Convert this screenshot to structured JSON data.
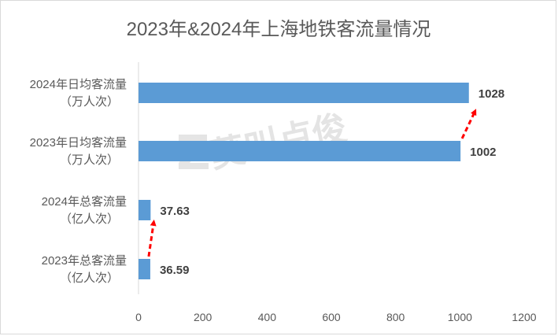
{
  "chart_data": {
    "type": "bar",
    "orientation": "horizontal",
    "title": "2023年&2024年上海地铁客流量情况",
    "categories": [
      [
        "2024年日均客流量",
        "（万人次）"
      ],
      [
        "2023年日均客流量",
        "（万人次）"
      ],
      [
        "2024年总客流量",
        "（亿人次）"
      ],
      [
        "2023年总客流量",
        "（亿人次）"
      ]
    ],
    "values": [
      1028,
      1002,
      37.63,
      36.59
    ],
    "data_labels": [
      "1028",
      "1002",
      "37.63",
      "36.59"
    ],
    "xlim": [
      0,
      1200
    ],
    "x_ticks": [
      "0",
      "200",
      "400",
      "600",
      "800",
      "1000",
      "1200"
    ],
    "x_tick_values": [
      0,
      200,
      400,
      600,
      800,
      1000,
      1200
    ],
    "grid": false,
    "legend": "none",
    "bar_color": "#5B9BD5",
    "annotation_color": "#FF0000",
    "annotations": [
      "dashed arrow from 2023 daily to 2024 daily",
      "dashed arrow from 2023 total to 2024 total"
    ]
  },
  "watermark": {
    "text": "莫叫卢俊",
    "logo_icon": "z-logo-icon"
  }
}
